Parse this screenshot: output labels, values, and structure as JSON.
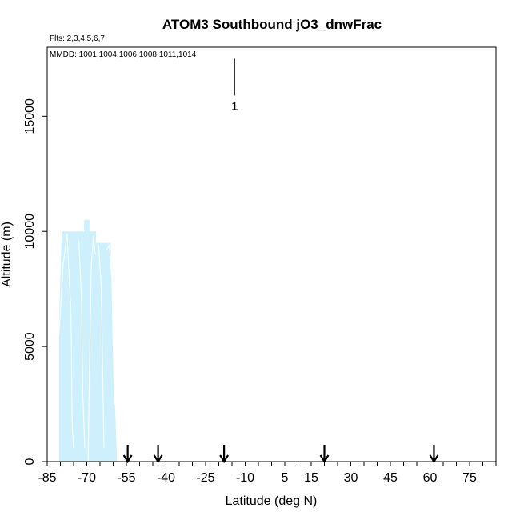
{
  "chart_data": {
    "type": "area",
    "title": "ATOM3 Southbound jO3_dnwFrac",
    "subtitle_flights": "Flts: 2,3,4,5,6,7",
    "subtitle_dates": "MMDD: 1001,1004,1006,1008,1011,1014",
    "xlabel": "Latitude (deg N)",
    "ylabel": "Altitude (m)",
    "xlim": [
      -85,
      85
    ],
    "ylim": [
      0,
      18000
    ],
    "x_ticks": [
      -85,
      -70,
      -55,
      -40,
      -25,
      -10,
      5,
      15,
      30,
      45,
      60,
      75
    ],
    "y_ticks": [
      0,
      5000,
      10000,
      15000
    ],
    "colors": {
      "fill": "#cdf0fc",
      "trace": "#ffffff",
      "marker": "#000000"
    },
    "series": [
      {
        "values": [
          [
            -80.5,
            0
          ],
          [
            -80.5,
            6000
          ],
          [
            -79.5,
            10000
          ],
          [
            -71,
            10000
          ],
          [
            -71,
            10500
          ],
          [
            -69,
            10500
          ],
          [
            -69,
            10000
          ],
          [
            -66.5,
            10000
          ],
          [
            -66.5,
            9500
          ],
          [
            -61,
            9500
          ],
          [
            -59.5,
            3000
          ],
          [
            -58.5,
            0
          ]
        ]
      }
    ],
    "legend_marker": {
      "label": "1",
      "x": -14,
      "y_top": 17500,
      "y_bottom": 15900
    },
    "arrows": [
      -54.5,
      -43,
      -18,
      20,
      61.5
    ]
  }
}
